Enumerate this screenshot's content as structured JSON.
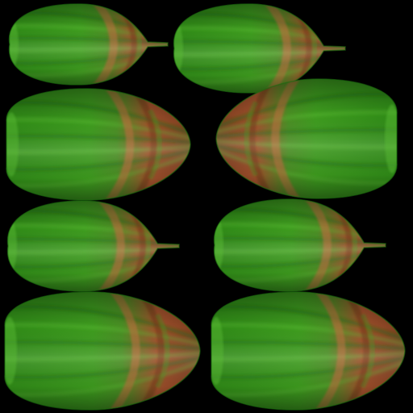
{
  "texture": {
    "background": "#000000",
    "colors": {
      "green_deep": "#1d6a0f",
      "green_mid": "#3c9a1e",
      "green_light": "#5cbc35",
      "rind_rust": "#a4502e",
      "rind_dark": "#6e3a1a",
      "rind_light": "#c46c40"
    },
    "pods": [
      {
        "id": "pod-1",
        "shape": "pointed-tip",
        "direction": "right"
      },
      {
        "id": "pod-2",
        "shape": "pointed-tip",
        "direction": "right"
      },
      {
        "id": "pod-3",
        "shape": "rounded",
        "direction": "right"
      },
      {
        "id": "pod-4",
        "shape": "rounded",
        "direction": "left"
      },
      {
        "id": "pod-5",
        "shape": "pointed-tip",
        "direction": "right"
      },
      {
        "id": "pod-6",
        "shape": "pointed-tip",
        "direction": "right"
      },
      {
        "id": "pod-7",
        "shape": "rounded",
        "direction": "right"
      },
      {
        "id": "pod-8",
        "shape": "rounded",
        "direction": "right"
      }
    ]
  }
}
